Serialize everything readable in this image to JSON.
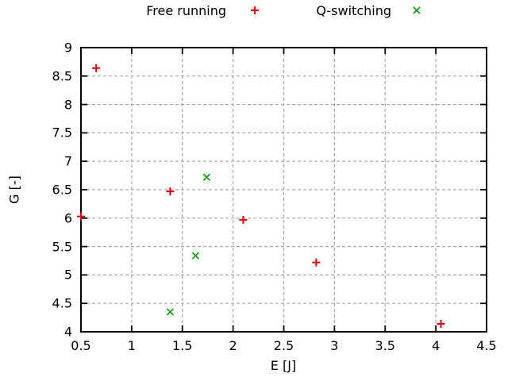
{
  "chart_data": {
    "type": "scatter",
    "title": "",
    "xlabel": "E [J]",
    "ylabel": "G [-]",
    "xlim": [
      0.5,
      4.5
    ],
    "ylim": [
      4,
      9
    ],
    "xticks": [
      0.5,
      1,
      1.5,
      2,
      2.5,
      3,
      3.5,
      4,
      4.5
    ],
    "yticks": [
      4,
      4.5,
      5,
      5.5,
      6,
      6.5,
      7,
      7.5,
      8,
      8.5,
      9
    ],
    "grid": true,
    "legend_position": "top-center",
    "colors": {
      "background": "#ffffff",
      "axis": "#000000",
      "grid": "#a8a8a8",
      "free_running": "#e00000",
      "q_switching": "#00a000"
    },
    "series": [
      {
        "name": "Free running",
        "marker": "plus",
        "color": "#e00000",
        "points": [
          [
            0.5,
            6.03
          ],
          [
            0.65,
            8.64
          ],
          [
            1.38,
            6.47
          ],
          [
            2.1,
            5.97
          ],
          [
            2.82,
            5.22
          ],
          [
            4.05,
            4.14
          ]
        ]
      },
      {
        "name": "Q-switching",
        "marker": "cross",
        "color": "#00a000",
        "points": [
          [
            1.38,
            4.35
          ],
          [
            1.63,
            5.34
          ],
          [
            1.74,
            6.72
          ]
        ]
      }
    ]
  }
}
